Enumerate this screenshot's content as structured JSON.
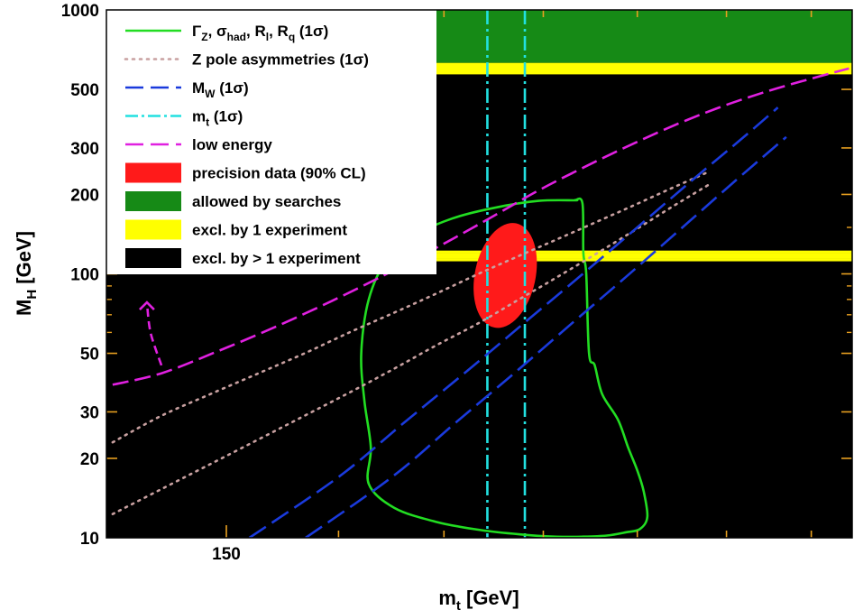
{
  "chart_data": {
    "type": "line",
    "xlabel": "m",
    "xlabel_sub": "t",
    "xlabel_unit": " [GeV]",
    "ylabel": "M",
    "ylabel_sub": "H",
    "ylabel_unit": " [GeV]",
    "xlim": [
      140,
      215
    ],
    "ylim": [
      10,
      1000
    ],
    "yscale": "log",
    "xticks": [
      150
    ],
    "xtick_labels": [
      "150"
    ],
    "yticks": [
      10,
      20,
      30,
      50,
      100,
      200,
      300,
      500,
      1000
    ],
    "ytick_labels": [
      "10",
      "20",
      "30",
      "50",
      "100",
      "200",
      "300",
      "500",
      "1000"
    ],
    "background": "#000000",
    "grid": false,
    "legend_position": "top-left",
    "legend": [
      {
        "key": "z_width",
        "label": "Γ_Z, σ_had, R_l, R_q (1σ)",
        "style": "solid",
        "color": "#22dd22"
      },
      {
        "key": "z_asym",
        "label": "Z pole asymmetries (1σ)",
        "style": "dotted",
        "color": "#c8a0a0"
      },
      {
        "key": "mw",
        "label": "M_W (1σ)",
        "style": "dashed",
        "color": "#1a3adc"
      },
      {
        "key": "mt",
        "label": "m_t (1σ)",
        "style": "dashdot",
        "color": "#22e0e0"
      },
      {
        "key": "low",
        "label": "low energy",
        "style": "dashed",
        "color": "#e020e0"
      },
      {
        "key": "precision",
        "label": "precision data (90% CL)",
        "style": "fill",
        "color": "#ff1a1a"
      },
      {
        "key": "allowed",
        "label": "allowed by searches",
        "style": "fill",
        "color": "#168a16"
      },
      {
        "key": "excl1",
        "label": "excl. by 1 experiment",
        "style": "fill",
        "color": "#ffff00"
      },
      {
        "key": "excl2",
        "label": "excl. by > 1 experiment",
        "style": "fill",
        "color": "#000000"
      }
    ],
    "bands": {
      "allowed_mh": [
        630,
        1000
      ],
      "yellow_top_mh": [
        570,
        630
      ],
      "yellow_mid_mh": [
        113,
        121
      ],
      "mt_band": [
        174.3,
        178.1
      ]
    },
    "series": [
      {
        "key": "z_width",
        "closed": true,
        "x": [
          183.3,
          184.1,
          184.2,
          184.5,
          184.8,
          185.4,
          186.2,
          187.9,
          189.0,
          190.0,
          190.7,
          191.1,
          190.3,
          188.8,
          186.7,
          184.2,
          181.1,
          177.6,
          173.6,
          169.2,
          165.2,
          162.8,
          163.0,
          162.4,
          162.1,
          162.8,
          164.5,
          167.2,
          170.8,
          175.0,
          179.5,
          183.3
        ],
        "y": [
          190,
          185,
          120,
          100,
          50,
          45,
          35,
          28,
          22,
          18,
          15,
          12,
          10.8,
          10.5,
          10.2,
          10.1,
          10.1,
          10.3,
          10.7,
          11.5,
          13,
          16,
          22,
          33,
          50,
          80,
          113,
          140,
          162,
          178,
          189,
          190
        ]
      },
      {
        "key": "z_asym_upper",
        "x": [
          140.5,
          144.5,
          148.6,
          152.8,
          156.9,
          161,
          165.1,
          169.2,
          173.4,
          177.5,
          181.6,
          185.7,
          189.8,
          193.9,
          198
        ],
        "y": [
          23,
          29,
          35,
          42,
          50,
          60,
          71,
          84,
          100,
          117,
          136,
          158,
          183,
          212,
          244
        ]
      },
      {
        "key": "z_asym_lower",
        "x": [
          140.5,
          144.5,
          148.6,
          152.8,
          156.9,
          161,
          165.1,
          169.2,
          173.4,
          177.5,
          181.6,
          185.7,
          189.8,
          193.9,
          198
        ],
        "y": [
          12.3,
          15.3,
          19,
          23.6,
          29,
          35.5,
          43.5,
          53.5,
          65,
          80,
          98,
          120,
          147,
          180,
          218
        ]
      },
      {
        "key": "mw_upper",
        "x": [
          152,
          160,
          166,
          172,
          178,
          184,
          190,
          196,
          202,
          206
        ],
        "y": [
          10,
          17,
          27,
          42,
          65,
          99,
          150,
          225,
          330,
          427
        ]
      },
      {
        "key": "mw_lower",
        "x": [
          157,
          165,
          171,
          177,
          183,
          189,
          195,
          201,
          207
        ],
        "y": [
          10,
          17,
          27,
          42,
          65,
          99,
          150,
          225,
          330
        ]
      },
      {
        "key": "low_energy",
        "x": [
          140.5,
          144.5,
          149.3,
          154.3,
          159.4,
          164.5,
          169.5,
          174.6,
          179.6,
          184.7,
          189.7,
          194.7,
          199.6,
          204.6,
          209.6,
          214.6
        ],
        "y": [
          38,
          42,
          51,
          63,
          79,
          100,
          127,
          163,
          208,
          258,
          313,
          373,
          432,
          490,
          545,
          600
        ]
      },
      {
        "key": "arrow_left",
        "x": [
          144.5,
          143.6,
          143.3
        ],
        "y": [
          45,
          60,
          78
        ]
      },
      {
        "key": "arrow_right",
        "x": [
          168.0,
          167.3,
          166.5
        ],
        "y": [
          127,
          150,
          180
        ]
      }
    ],
    "ellipse": {
      "mt_center": 176.1,
      "mh_center": 98,
      "mt_halfwidth": 3.1,
      "mh_low": 62,
      "mh_high": 157
    }
  }
}
